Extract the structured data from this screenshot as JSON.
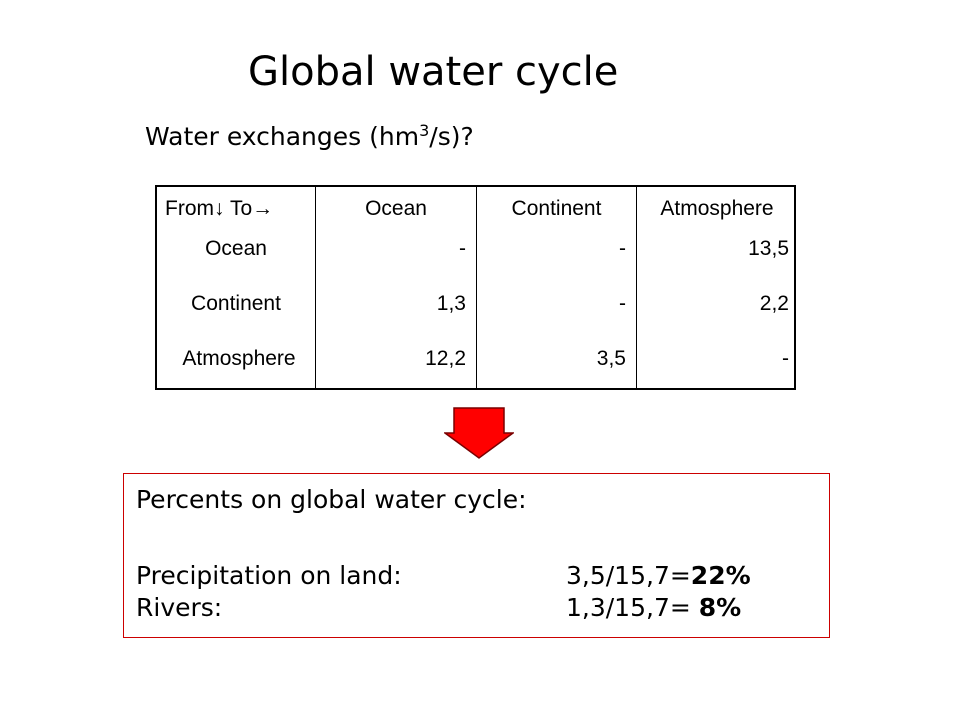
{
  "title": "Global water cycle",
  "subtitle": {
    "text_before": "Water exchanges (hm",
    "superscript": "3",
    "text_after": "/s)?"
  },
  "table": {
    "header": {
      "corner": "From↓ To→",
      "columns": [
        "Ocean",
        "Continent",
        "Atmosphere"
      ]
    },
    "rows": [
      {
        "label": "Ocean",
        "values": [
          "-",
          "-",
          "13,5"
        ]
      },
      {
        "label": "Continent",
        "values": [
          "1,3",
          "-",
          "2,2"
        ]
      },
      {
        "label": "Atmosphere",
        "values": [
          "12,2",
          "3,5",
          "-"
        ]
      }
    ]
  },
  "arrow": {
    "icon": "down-arrow-icon",
    "fill": "#ff0000",
    "stroke": "#7a0000"
  },
  "summary": {
    "heading": "Percents on global water cycle:",
    "items": [
      {
        "label": "Precipitation on land:",
        "formula": "3,5/15,7=",
        "percent": "22%"
      },
      {
        "label": "Rivers:",
        "formula": "1,3/15,7=",
        "percent": "8%"
      }
    ],
    "border_color": "#cc0000"
  }
}
